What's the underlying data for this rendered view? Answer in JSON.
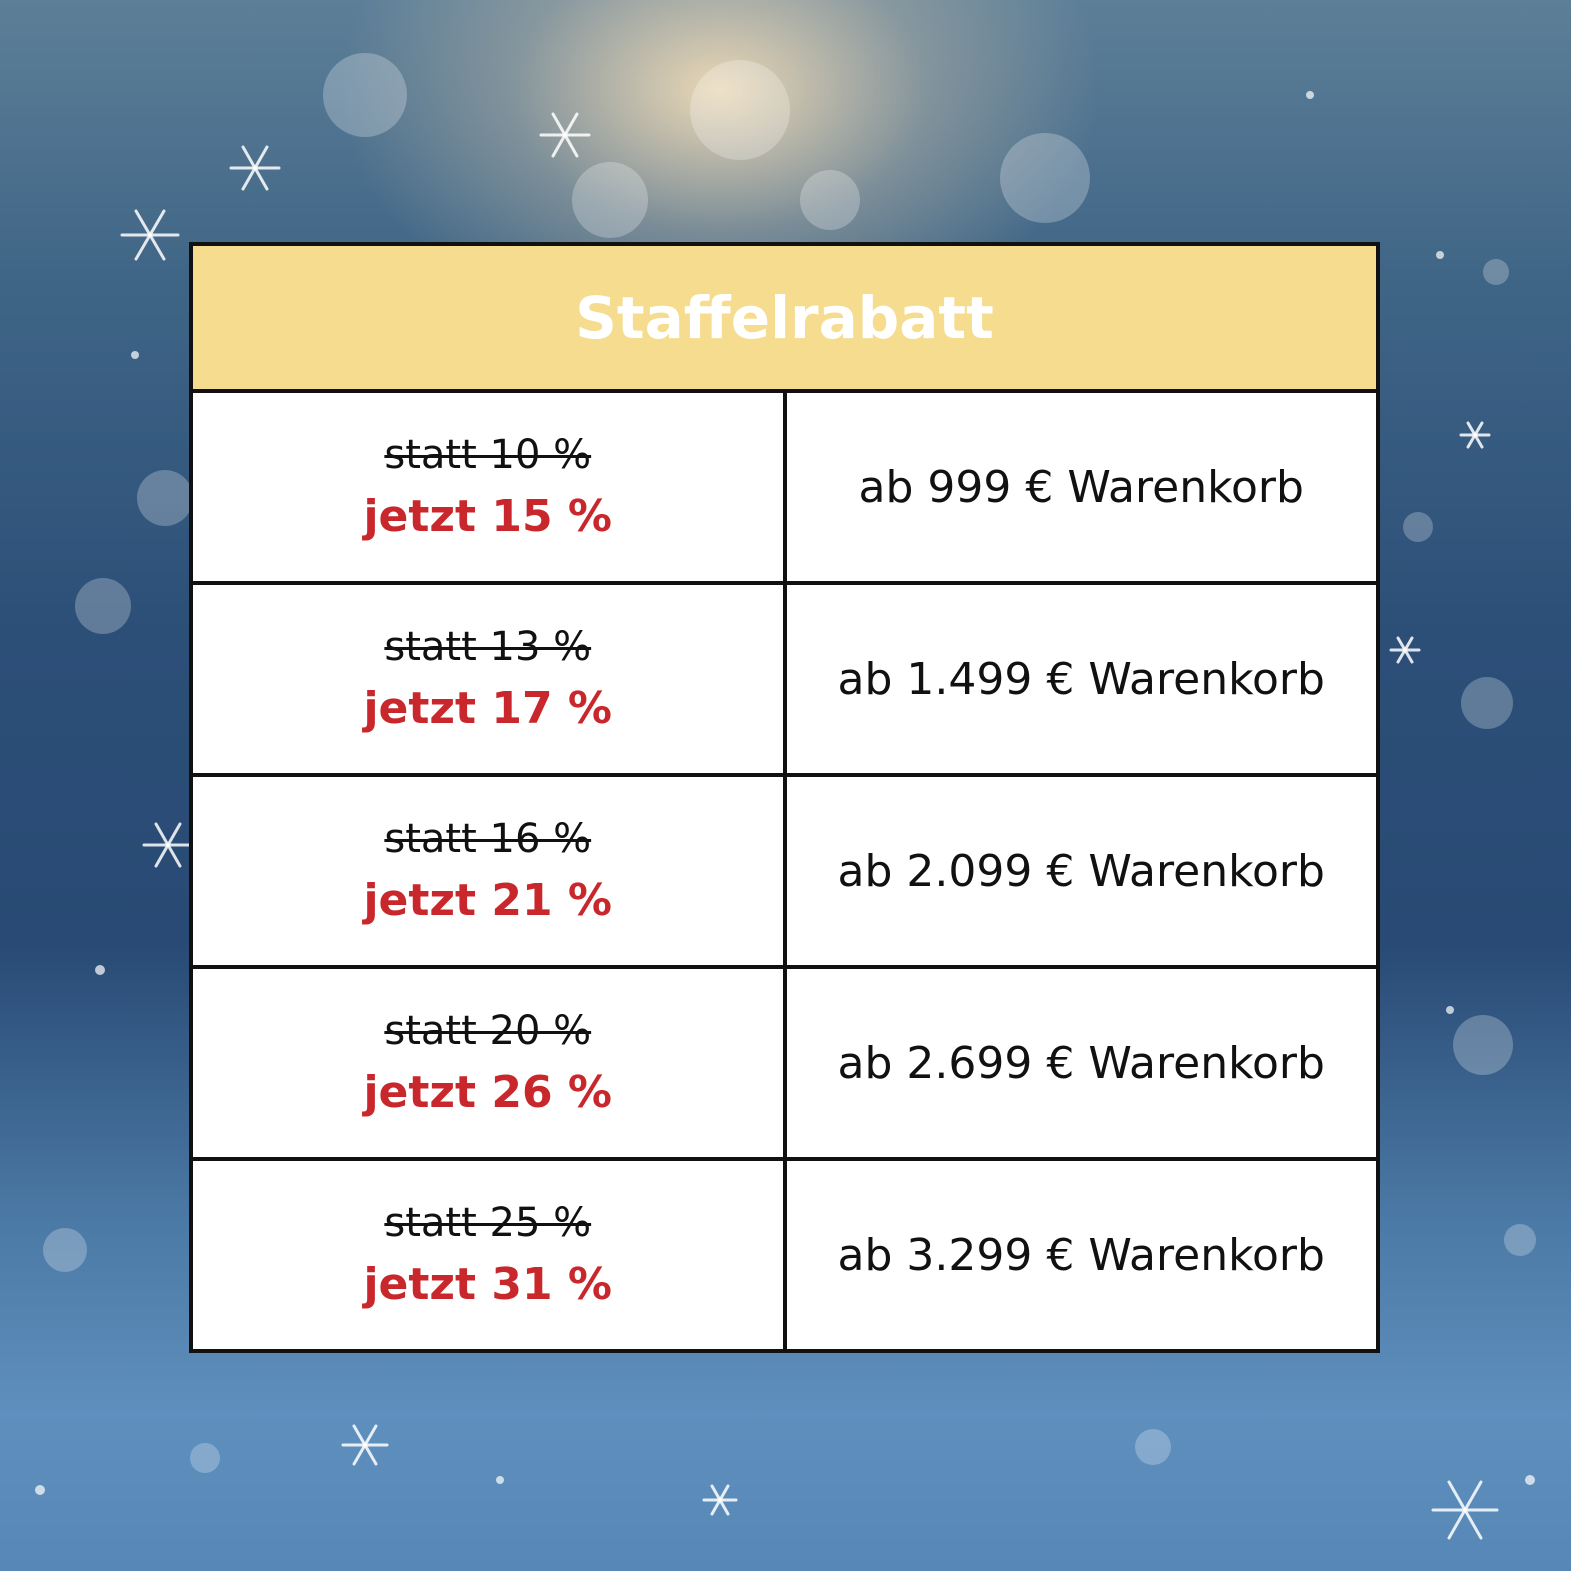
{
  "table": {
    "title": "Staffelrabatt",
    "rows": [
      {
        "old": "statt 10 %",
        "new": "jetzt 15 %",
        "threshold": "ab 999 € Warenkorb"
      },
      {
        "old": "statt 13 %",
        "new": "jetzt 17 %",
        "threshold": "ab 1.499 € Warenkorb"
      },
      {
        "old": "statt 16 %",
        "new": "jetzt 21 %",
        "threshold": "ab 2.099 € Warenkorb"
      },
      {
        "old": "statt 20 %",
        "new": "jetzt 26 %",
        "threshold": "ab 2.699 € Warenkorb"
      },
      {
        "old": "statt 25 %",
        "new": "jetzt 31 %",
        "threshold": "ab 3.299 € Warenkorb"
      }
    ]
  }
}
